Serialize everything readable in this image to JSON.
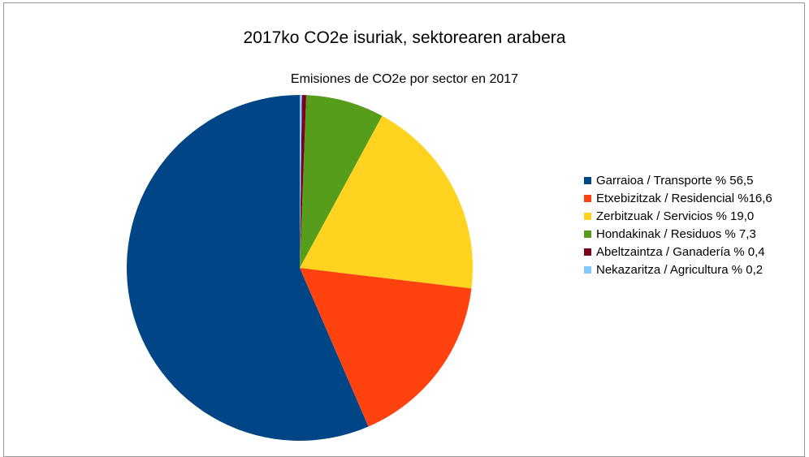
{
  "chart_data": {
    "type": "pie",
    "title": "2017ko CO2e isuriak, sektorearen arabera",
    "subtitle": "Emisiones de CO2e por sector en 2017",
    "legend_position": "right",
    "slices": [
      {
        "label": "Garraioa / Transporte % 56,5",
        "value": 56.5,
        "color": "#004586"
      },
      {
        "label": "Etxebizitzak / Residencial %16,6",
        "value": 16.6,
        "color": "#ff420e"
      },
      {
        "label": "Zerbitzuak / Servicios % 19,0",
        "value": 19.0,
        "color": "#ffd320"
      },
      {
        "label": "Hondakinak / Residuos % 7,3",
        "value": 7.3,
        "color": "#579d1c"
      },
      {
        "label": "Abeltzaintza / Ganadería % 0,4",
        "value": 0.4,
        "color": "#7e0021"
      },
      {
        "label": "Nekazaritza / Agricultura % 0,2",
        "value": 0.2,
        "color": "#83caff"
      }
    ]
  }
}
